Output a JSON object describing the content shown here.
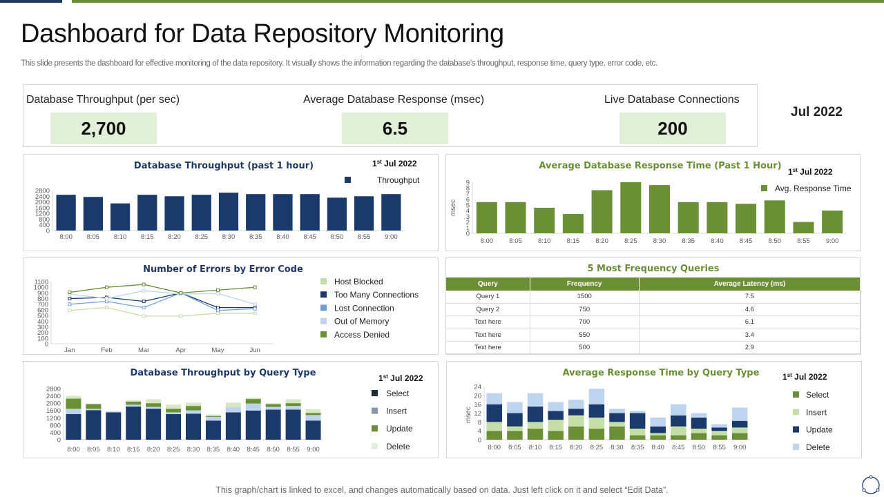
{
  "header": {
    "title": "Dashboard for Data Repository Monitoring",
    "subtitle": "This slide presents the dashboard for effective monitoring of the data repository. It visually shows the information regarding the database's throughput, response time, query type,  error code, etc."
  },
  "kpis": [
    {
      "label": "Database Throughput  (per sec)",
      "value": "2,700"
    },
    {
      "label": "Average Database Response (msec)",
      "value": "6.5"
    },
    {
      "label": "Live Database Connections",
      "value": "200"
    }
  ],
  "month": "Jul 2022",
  "colors": {
    "navy": "#1a3a6b",
    "green": "#6a8f34",
    "light_green": "#c5dea7",
    "light_blue": "#bdd4ee",
    "mid_blue": "#6fa0d8",
    "kpi_bg": "#e2efd9"
  },
  "chart_data": [
    {
      "type": "bar",
      "title": "Database Throughput (past 1 hour)",
      "date": "1st Jul 2022",
      "date_day": "1",
      "date_sup": "st",
      "date_rest": " Jul 2022",
      "categories": [
        "8:00",
        "8:05",
        "8:10",
        "8:15",
        "8:20",
        "8:25",
        "8:30",
        "8:35",
        "8:40",
        "8:45",
        "8:50",
        "8:55",
        "9:00"
      ],
      "series": [
        {
          "name": "Throughput",
          "color": "#1a3a6b",
          "values": [
            2500,
            2350,
            1900,
            2500,
            2400,
            2500,
            2650,
            2550,
            2550,
            2550,
            2300,
            2400,
            2550
          ]
        }
      ],
      "ylim": [
        0,
        2800
      ],
      "yticks": [
        "0",
        "400",
        "800",
        "1200",
        "1600",
        "2000",
        "2400",
        "2800"
      ],
      "legend": "top-right",
      "grid": false
    },
    {
      "type": "bar",
      "title": "Average Database Response Time (Past 1 Hour)",
      "date_day": "1",
      "date_sup": "st",
      "date_rest": " Jul 2022",
      "ylabel": "msec",
      "categories": [
        "8:00",
        "8:05",
        "8:10",
        "8:15",
        "8:20",
        "8:25",
        "8:30",
        "8:35",
        "8:40",
        "8:45",
        "8:50",
        "8:55",
        "9:00"
      ],
      "series": [
        {
          "name": "Avg. Response Time",
          "color": "#6a8f34",
          "values": [
            5.5,
            5.5,
            4.5,
            3.4,
            7.6,
            9,
            8.5,
            5.5,
            5.5,
            5.2,
            5.8,
            2,
            4
          ]
        }
      ],
      "ylim": [
        0,
        9
      ],
      "yticks": [
        "0",
        "1",
        "2",
        "3",
        "4",
        "5",
        "6",
        "7",
        "8",
        "9"
      ],
      "legend": "right",
      "grid": false
    },
    {
      "type": "line",
      "title": "Number of Errors by Error Code",
      "categories": [
        "Jan",
        "Feb",
        "Mar",
        "Apr",
        "May",
        "Jun"
      ],
      "series": [
        {
          "name": "Host Blocked",
          "color": "#c5dea7",
          "values": [
            590,
            640,
            490,
            490,
            540,
            540
          ]
        },
        {
          "name": "Too Many Connections",
          "color": "#1a3a6b",
          "values": [
            800,
            820,
            750,
            900,
            640,
            640
          ]
        },
        {
          "name": "Lost Connection",
          "color": "#6fa0d8",
          "values": [
            700,
            750,
            640,
            900,
            590,
            620
          ]
        },
        {
          "name": "Out of Memory",
          "color": "#bdd4ee",
          "values": [
            880,
            800,
            940,
            880,
            890,
            700
          ]
        },
        {
          "name": "Access Denied",
          "color": "#6a8f34",
          "values": [
            910,
            1000,
            1050,
            900,
            950,
            1000
          ]
        }
      ],
      "ylim": [
        0,
        1100
      ],
      "yticks": [
        "0",
        "100",
        "200",
        "300",
        "400",
        "500",
        "600",
        "700",
        "800",
        "900",
        "1000",
        "1100"
      ],
      "legend": "right",
      "grid": false
    },
    {
      "type": "stacked-bar",
      "title": "Database Throughput by Query Type",
      "date_day": "1",
      "date_sup": "st",
      "date_rest": " Jul 2022",
      "categories": [
        "8:00",
        "8:05",
        "8:10",
        "8:15",
        "8:20",
        "8:25",
        "8:30",
        "8:35",
        "8:40",
        "8:45",
        "8:50",
        "8:55",
        "9:00"
      ],
      "series": [
        {
          "name": "Select",
          "color": "#1a3a6b",
          "legend_color": "#222a35",
          "values": [
            1400,
            1620,
            1500,
            1820,
            1700,
            1400,
            1430,
            1050,
            1500,
            1600,
            1650,
            1650,
            1050
          ]
        },
        {
          "name": "Insert",
          "color": "#bdd4ee",
          "legend_color": "#8496b0",
          "values": [
            300,
            80,
            60,
            100,
            100,
            100,
            180,
            200,
            300,
            380,
            150,
            200,
            300
          ]
        },
        {
          "name": "Update",
          "color": "#6a8f34",
          "legend_color": "#6a8f34",
          "values": [
            550,
            250,
            0,
            170,
            200,
            200,
            240,
            50,
            0,
            250,
            150,
            150,
            120
          ]
        },
        {
          "name": "Delete",
          "color": "#d5e8c0",
          "legend_color": "#e2efd9",
          "values": [
            150,
            30,
            0,
            70,
            220,
            220,
            180,
            80,
            230,
            80,
            50,
            220,
            200
          ]
        }
      ],
      "ylim": [
        0,
        2800
      ],
      "yticks": [
        "0",
        "400",
        "800",
        "1200",
        "1600",
        "2000",
        "2400",
        "2800"
      ],
      "legend": "right",
      "grid": false
    },
    {
      "type": "stacked-bar",
      "title": "Average Response Time by Query Type",
      "date_day": "1",
      "date_sup": "st",
      "date_rest": " Jul 2022",
      "ylabel": "msec",
      "categories": [
        "8:00",
        "8:05",
        "8:10",
        "8:15",
        "8:20",
        "8:25",
        "8:30",
        "8:35",
        "8:40",
        "8:45",
        "8:50",
        "8:55",
        "9:00"
      ],
      "series": [
        {
          "name": "Select",
          "color": "#6a8f34",
          "values": [
            4,
            4,
            5,
            4,
            6,
            5,
            6,
            2,
            2,
            2,
            3,
            2,
            3
          ]
        },
        {
          "name": "Insert",
          "color": "#c5dea7",
          "values": [
            4,
            2,
            3,
            5,
            5,
            5,
            2,
            3,
            1,
            4,
            2,
            2,
            2.5
          ]
        },
        {
          "name": "Update",
          "color": "#1a3a6b",
          "values": [
            8,
            6,
            7,
            4,
            3,
            6,
            4,
            7,
            3,
            5,
            5,
            1.5,
            3
          ]
        },
        {
          "name": "Delete",
          "color": "#bdd4ee",
          "values": [
            5,
            5,
            6,
            4,
            4,
            7,
            2,
            1,
            4,
            5,
            2,
            1.5,
            6
          ]
        }
      ],
      "ylim": [
        0,
        24
      ],
      "yticks": [
        "0",
        "4",
        "8",
        "12",
        "16",
        "20",
        "24"
      ],
      "legend": "right",
      "grid": false
    }
  ],
  "table": {
    "title": "5 Most Frequency  Queries",
    "headers": [
      "Query",
      "Frequency",
      "Average Latency (ms)"
    ],
    "rows": [
      [
        "Query 1",
        "1500",
        "7.5"
      ],
      [
        "Query 2",
        "750",
        "4.6"
      ],
      [
        "Text here",
        "700",
        "6.1"
      ],
      [
        "Text here",
        "550",
        "3.4"
      ],
      [
        "Text here",
        "500",
        "2.9"
      ]
    ]
  },
  "footer": "This graph/chart is linked to excel, and changes automatically based on data. Just left click on it and select “Edit Data”."
}
